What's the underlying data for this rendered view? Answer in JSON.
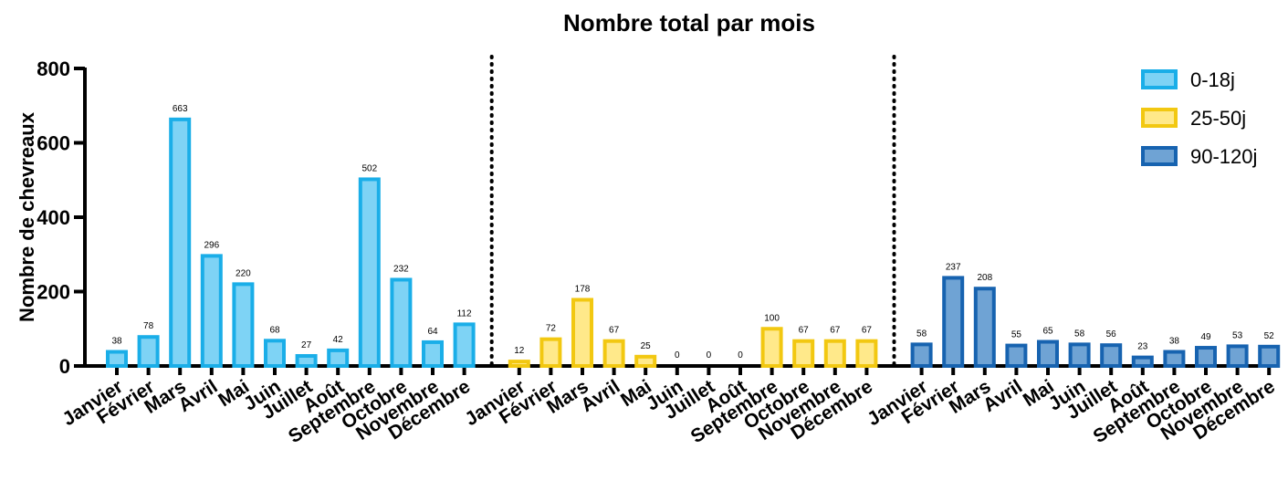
{
  "chart_data": {
    "type": "bar",
    "title": "Nombre total par mois",
    "ylabel": "Nombre de chevreaux",
    "xlabel": "",
    "ylim": [
      0,
      800
    ],
    "yticks": [
      0,
      200,
      400,
      600,
      800
    ],
    "grid": false,
    "legend_position": "top-right",
    "categories": [
      "Janvier",
      "Février",
      "Mars",
      "Avril",
      "Mai",
      "Juin",
      "Juillet",
      "Août",
      "Septembre",
      "Octobre",
      "Novembre",
      "Décembre"
    ],
    "series": [
      {
        "name": "0-18j",
        "fill": "#7ed3f5",
        "stroke": "#1aaee8",
        "values": [
          38,
          78,
          663,
          296,
          220,
          68,
          27,
          42,
          502,
          232,
          64,
          112
        ]
      },
      {
        "name": "25-50j",
        "fill": "#ffe98a",
        "stroke": "#f2c811",
        "values": [
          12,
          72,
          178,
          67,
          25,
          0,
          0,
          0,
          100,
          67,
          67,
          67
        ]
      },
      {
        "name": "90-120j",
        "fill": "#6fa3d4",
        "stroke": "#1763b0",
        "values": [
          58,
          237,
          208,
          55,
          65,
          58,
          56,
          23,
          38,
          49,
          53,
          52
        ]
      }
    ]
  }
}
